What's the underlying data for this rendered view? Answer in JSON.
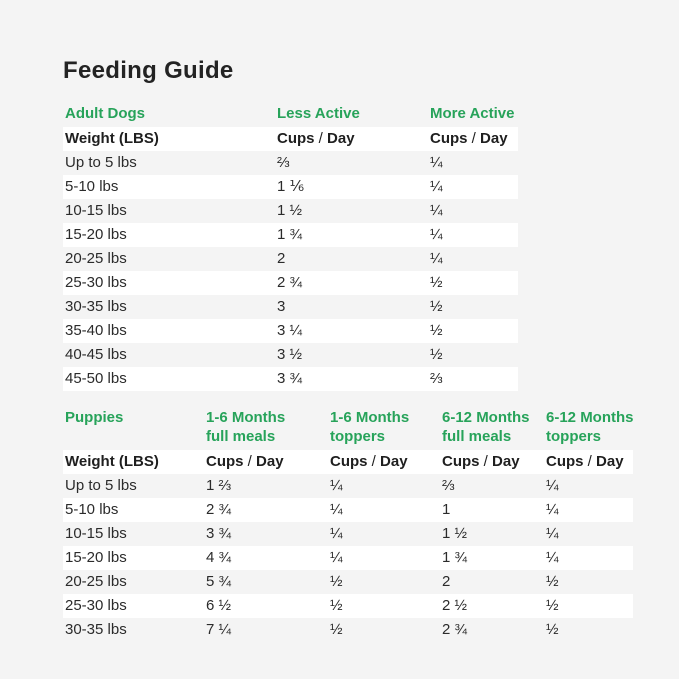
{
  "page": {
    "title": "Feeding Guide"
  },
  "colors": {
    "accent_green": "#27a35a",
    "text_dark": "#232323",
    "page_background": "#f4f4f4",
    "row_stripe": "#ffffff"
  },
  "labels": {
    "cups": "Cups",
    "slash": "/",
    "day": "Day",
    "weight_header": "Weight (LBS)"
  },
  "adult_table": {
    "section_label": "Adult Dogs",
    "column_headers": [
      "Less Active",
      "More Active"
    ],
    "rows": [
      {
        "weight": "Up to 5 lbs",
        "less_active": "⅔",
        "more_active": "¼"
      },
      {
        "weight": "5-10 lbs",
        "less_active": "1 ⅙",
        "more_active": "¼"
      },
      {
        "weight": "10-15 lbs",
        "less_active": "1 ½",
        "more_active": "¼"
      },
      {
        "weight": "15-20 lbs",
        "less_active": "1 ¾",
        "more_active": "¼"
      },
      {
        "weight": "20-25 lbs",
        "less_active": "2",
        "more_active": "¼"
      },
      {
        "weight": "25-30 lbs",
        "less_active": "2 ¾",
        "more_active": "½"
      },
      {
        "weight": "30-35 lbs",
        "less_active": "3",
        "more_active": "½"
      },
      {
        "weight": "35-40 lbs",
        "less_active": "3 ¼",
        "more_active": "½"
      },
      {
        "weight": "40-45 lbs",
        "less_active": "3 ½",
        "more_active": "½"
      },
      {
        "weight": "45-50 lbs",
        "less_active": "3 ¾",
        "more_active": "⅔"
      }
    ]
  },
  "puppies_table": {
    "section_label": "Puppies",
    "column_headers": [
      {
        "line1": "1-6 Months",
        "line2": "full meals"
      },
      {
        "line1": "1-6 Months",
        "line2": "toppers"
      },
      {
        "line1": "6-12 Months",
        "line2": "full meals"
      },
      {
        "line1": "6-12 Months",
        "line2": "toppers"
      }
    ],
    "rows": [
      {
        "weight": "Up to 5 lbs",
        "full_1_6": "1 ⅔",
        "top_1_6": "¼",
        "full_6_12": "⅔",
        "top_6_12": "¼"
      },
      {
        "weight": "5-10 lbs",
        "full_1_6": "2 ¾",
        "top_1_6": "¼",
        "full_6_12": "1",
        "top_6_12": "¼"
      },
      {
        "weight": "10-15 lbs",
        "full_1_6": "3 ¾",
        "top_1_6": "¼",
        "full_6_12": "1 ½",
        "top_6_12": "¼"
      },
      {
        "weight": "15-20 lbs",
        "full_1_6": "4 ¾",
        "top_1_6": "¼",
        "full_6_12": "1 ¾",
        "top_6_12": "¼"
      },
      {
        "weight": "20-25 lbs",
        "full_1_6": "5 ¾",
        "top_1_6": "½",
        "full_6_12": "2",
        "top_6_12": "½"
      },
      {
        "weight": "25-30 lbs",
        "full_1_6": "6 ½",
        "top_1_6": "½",
        "full_6_12": "2 ½",
        "top_6_12": "½"
      },
      {
        "weight": "30-35 lbs",
        "full_1_6": "7 ¼",
        "top_1_6": "½",
        "full_6_12": "2 ¾",
        "top_6_12": "½"
      }
    ]
  }
}
